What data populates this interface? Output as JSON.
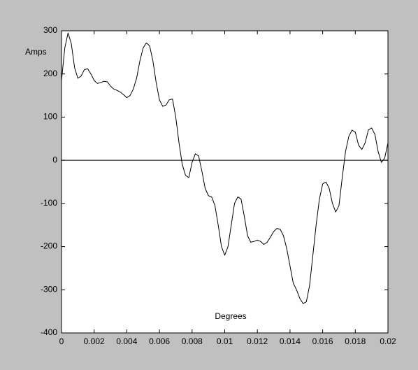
{
  "chart_data": {
    "type": "line",
    "ylabel": "Amps",
    "xlabel": "Degrees",
    "x": [
      0,
      0.0002,
      0.0004,
      0.0006,
      0.0008,
      0.001,
      0.0012,
      0.0014,
      0.0016,
      0.0018,
      0.002,
      0.0022,
      0.0024,
      0.0026,
      0.0028,
      0.003,
      0.0032,
      0.0034,
      0.0036,
      0.0038,
      0.004,
      0.0042,
      0.0044,
      0.0046,
      0.0048,
      0.005,
      0.0052,
      0.0054,
      0.0056,
      0.0058,
      0.006,
      0.0062,
      0.0064,
      0.0066,
      0.0068,
      0.007,
      0.0072,
      0.0074,
      0.0076,
      0.0078,
      0.008,
      0.0082,
      0.0084,
      0.0086,
      0.0088,
      0.009,
      0.0092,
      0.0094,
      0.0096,
      0.0098,
      0.01,
      0.0102,
      0.0104,
      0.0106,
      0.0108,
      0.011,
      0.0112,
      0.0114,
      0.0116,
      0.0118,
      0.012,
      0.0122,
      0.0124,
      0.0126,
      0.0128,
      0.013,
      0.0132,
      0.0134,
      0.0136,
      0.0138,
      0.014,
      0.0142,
      0.0144,
      0.0146,
      0.0148,
      0.015,
      0.0152,
      0.0154,
      0.0156,
      0.0158,
      0.016,
      0.0162,
      0.0164,
      0.0166,
      0.0168,
      0.017,
      0.0172,
      0.0174,
      0.0176,
      0.0178,
      0.018,
      0.0182,
      0.0184,
      0.0186,
      0.0188,
      0.019,
      0.0192,
      0.0194,
      0.0196,
      0.0198,
      0.02
    ],
    "series": [
      {
        "color": "#000000",
        "values": [
          185,
          260,
          295,
          270,
          215,
          190,
          195,
          210,
          212,
          200,
          185,
          178,
          180,
          183,
          182,
          172,
          165,
          162,
          158,
          152,
          145,
          150,
          165,
          190,
          230,
          260,
          272,
          265,
          230,
          180,
          140,
          125,
          128,
          140,
          142,
          100,
          40,
          -10,
          -35,
          -40,
          -5,
          15,
          10,
          -25,
          -65,
          -82,
          -85,
          -105,
          -150,
          -200,
          -220,
          -200,
          -150,
          -100,
          -85,
          -90,
          -130,
          -175,
          -190,
          -188,
          -185,
          -188,
          -195,
          -190,
          -178,
          -165,
          -158,
          -160,
          -175,
          -205,
          -245,
          -285,
          -300,
          -320,
          -332,
          -328,
          -290,
          -220,
          -150,
          -90,
          -55,
          -50,
          -65,
          -100,
          -120,
          -105,
          -40,
          20,
          55,
          70,
          65,
          35,
          25,
          40,
          70,
          75,
          60,
          20,
          -5,
          5,
          40
        ]
      }
    ],
    "xlim": [
      0,
      0.02
    ],
    "xticks": [
      0,
      0.002,
      0.004,
      0.006,
      0.008,
      0.01,
      0.012,
      0.014,
      0.016,
      0.018,
      0.02
    ],
    "ylim": [
      -400,
      300
    ],
    "yticks": [
      -400,
      -300,
      -200,
      -100,
      0,
      100,
      200,
      300
    ]
  }
}
